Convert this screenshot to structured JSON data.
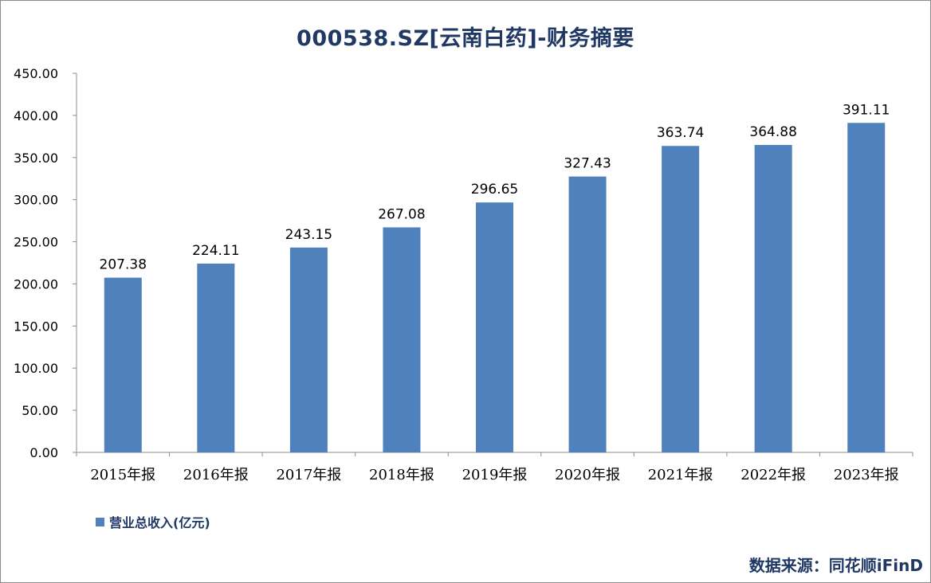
{
  "chart_data": {
    "type": "bar",
    "title": "000538.SZ[云南白药]-财务摘要",
    "categories": [
      "2015年报",
      "2016年报",
      "2017年报",
      "2018年报",
      "2019年报",
      "2020年报",
      "2021年报",
      "2022年报",
      "2023年报"
    ],
    "series": [
      {
        "name": "营业总收入(亿元)",
        "values": [
          207.38,
          224.11,
          243.15,
          267.08,
          296.65,
          327.43,
          363.74,
          364.88,
          391.11
        ],
        "labels": [
          "207.38",
          "224.11",
          "243.15",
          "267.08",
          "296.65",
          "327.43",
          "363.74",
          "364.88",
          "391.11"
        ],
        "color": "#4f81bd"
      }
    ],
    "yticks": [
      "0.00",
      "50.00",
      "100.00",
      "150.00",
      "200.00",
      "250.00",
      "300.00",
      "350.00",
      "400.00",
      "450.00"
    ],
    "ylim": [
      0,
      450
    ],
    "xlabel": "",
    "ylabel": "",
    "grid": false,
    "legend": "bottom-left"
  },
  "footer": {
    "source": "数据来源：同花顺iFinD"
  },
  "colors": {
    "title": "#1f3864",
    "bar": "#4f81bd",
    "axis": "#8c8c8c"
  }
}
